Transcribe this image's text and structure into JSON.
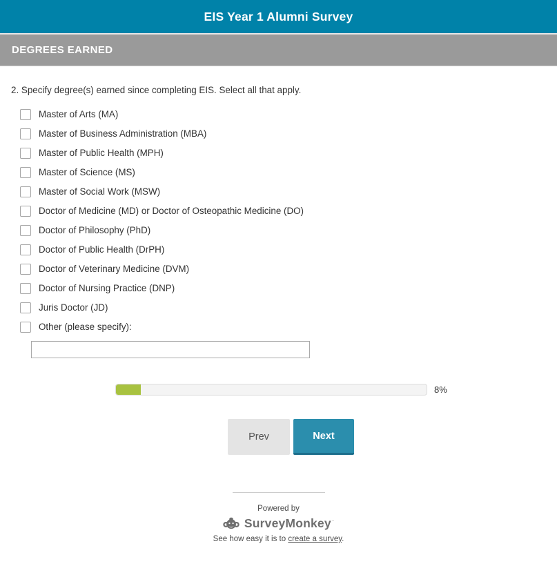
{
  "header": {
    "title": "EIS Year 1 Alumni Survey"
  },
  "section": {
    "title": "DEGREES EARNED"
  },
  "question": {
    "text": "2. Specify degree(s) earned since completing EIS. Select all that apply.",
    "options": [
      "Master of Arts (MA)",
      "Master of Business Administration (MBA)",
      "Master of Public Health (MPH)",
      "Master of Science (MS)",
      "Master of Social Work (MSW)",
      "Doctor of Medicine (MD) or Doctor of Osteopathic Medicine (DO)",
      "Doctor of Philosophy (PhD)",
      "Doctor of Public Health (DrPH)",
      "Doctor of Veterinary Medicine (DVM)",
      "Doctor of Nursing Practice (DNP)",
      "Juris Doctor (JD)",
      "Other (please specify):"
    ],
    "other_value": "",
    "other_placeholder": ""
  },
  "progress": {
    "percent": 8,
    "label": "8%"
  },
  "buttons": {
    "prev": "Prev",
    "next": "Next"
  },
  "footer": {
    "powered_by": "Powered by",
    "brand": "SurveyMonkey",
    "trademark": "·",
    "tagline_prefix": "See how easy it is to ",
    "tagline_link": "create a survey",
    "tagline_suffix": "."
  },
  "colors": {
    "header_bg": "#0082A9",
    "section_bg": "#9A9A9A",
    "next_button_bg": "#2B8EAD",
    "next_button_shadow": "#1D6E8C",
    "prev_button_bg": "#E4E4E4",
    "progress_fill": "#A8C240",
    "progress_track": "#F4F4F4",
    "text": "#333333",
    "footer_brand": "#6E6E6E"
  }
}
